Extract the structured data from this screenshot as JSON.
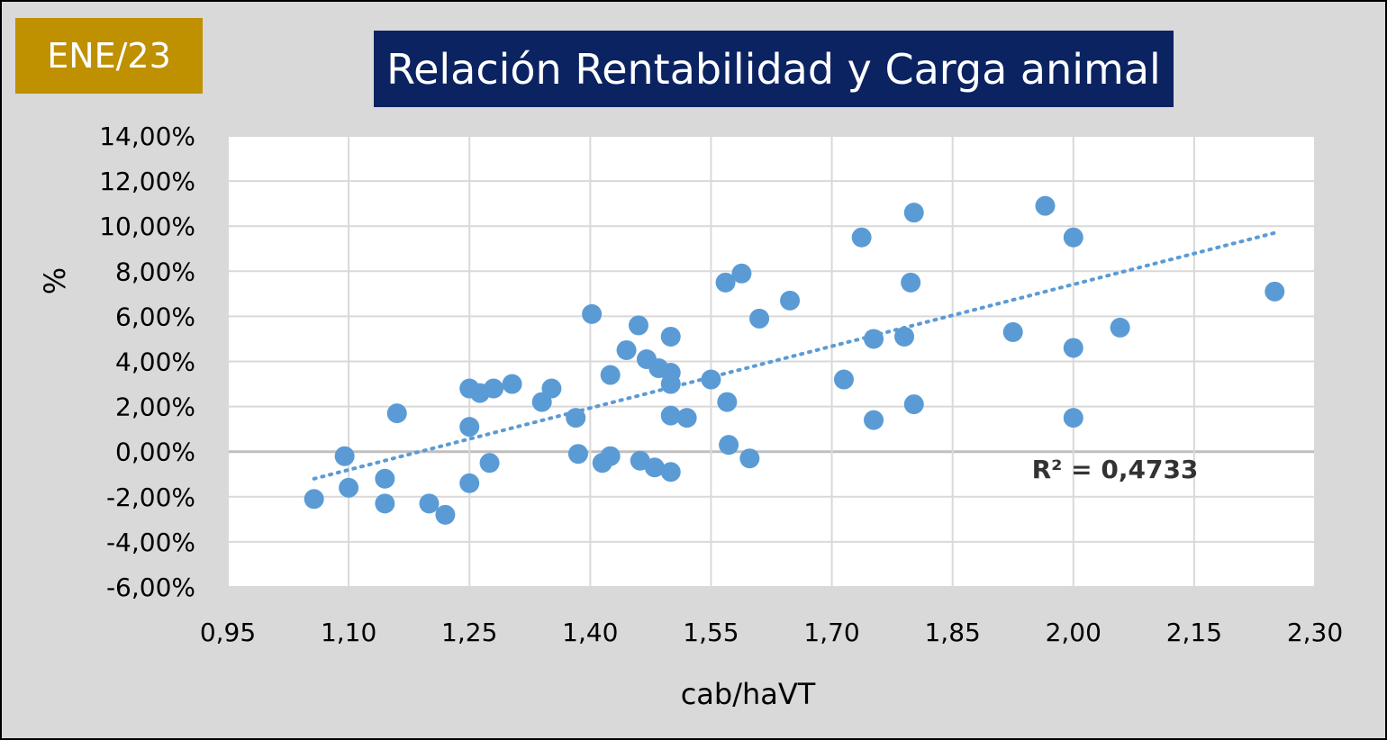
{
  "badge": {
    "label": "ENE/23"
  },
  "colors": {
    "background": "#d9d9d9",
    "plot_area": "#ffffff",
    "badge": "#bf9000",
    "title_box": "#0b2361",
    "points": "#5b9bd5",
    "trendline": "#5b9bd5",
    "gridline": "#d9d9d9"
  },
  "chart_data": {
    "type": "scatter",
    "title": "Relación Rentabilidad y Carga animal",
    "xlabel": "cab/haVT",
    "ylabel": "%",
    "xlim": [
      0.95,
      2.3
    ],
    "ylim": [
      -6,
      14
    ],
    "x_ticks": [
      0.95,
      1.1,
      1.25,
      1.4,
      1.55,
      1.7,
      1.85,
      2.0,
      2.15,
      2.3
    ],
    "y_ticks": [
      -6,
      -4,
      -2,
      0,
      2,
      4,
      6,
      8,
      10,
      12,
      14
    ],
    "x_tick_labels": [
      "0,95",
      "1,10",
      "1,25",
      "1,40",
      "1,55",
      "1,70",
      "1,85",
      "2,00",
      "2,15",
      "2,30"
    ],
    "y_tick_labels": [
      "-6,00%",
      "-4,00%",
      "-2,00%",
      "0,00%",
      "2,00%",
      "4,00%",
      "6,00%",
      "8,00%",
      "10,00%",
      "12,00%",
      "14,00%"
    ],
    "grid": true,
    "legend": "none",
    "points": [
      [
        1.057,
        -2.1
      ],
      [
        1.095,
        -0.2
      ],
      [
        1.1,
        -1.6
      ],
      [
        1.145,
        -1.2
      ],
      [
        1.145,
        -2.3
      ],
      [
        1.16,
        1.7
      ],
      [
        1.2,
        -2.3
      ],
      [
        1.22,
        -2.8
      ],
      [
        1.25,
        2.8
      ],
      [
        1.25,
        1.1
      ],
      [
        1.25,
        -1.4
      ],
      [
        1.263,
        2.6
      ],
      [
        1.275,
        -0.5
      ],
      [
        1.28,
        2.8
      ],
      [
        1.303,
        3.0
      ],
      [
        1.34,
        2.2
      ],
      [
        1.352,
        2.8
      ],
      [
        1.382,
        1.5
      ],
      [
        1.385,
        -0.1
      ],
      [
        1.402,
        6.1
      ],
      [
        1.415,
        -0.5
      ],
      [
        1.425,
        -0.2
      ],
      [
        1.425,
        3.4
      ],
      [
        1.445,
        4.5
      ],
      [
        1.46,
        5.6
      ],
      [
        1.462,
        -0.4
      ],
      [
        1.47,
        4.1
      ],
      [
        1.48,
        -0.7
      ],
      [
        1.485,
        3.7
      ],
      [
        1.5,
        5.1
      ],
      [
        1.5,
        3.5
      ],
      [
        1.5,
        3.0
      ],
      [
        1.5,
        1.6
      ],
      [
        1.5,
        -0.9
      ],
      [
        1.52,
        1.5
      ],
      [
        1.55,
        3.2
      ],
      [
        1.568,
        7.5
      ],
      [
        1.57,
        2.2
      ],
      [
        1.572,
        0.3
      ],
      [
        1.588,
        7.9
      ],
      [
        1.598,
        -0.3
      ],
      [
        1.61,
        5.9
      ],
      [
        1.648,
        6.7
      ],
      [
        1.715,
        3.2
      ],
      [
        1.737,
        9.5
      ],
      [
        1.752,
        5.0
      ],
      [
        1.752,
        1.4
      ],
      [
        1.79,
        5.1
      ],
      [
        1.798,
        7.5
      ],
      [
        1.802,
        10.6
      ],
      [
        1.802,
        2.1
      ],
      [
        1.925,
        5.3
      ],
      [
        1.965,
        10.9
      ],
      [
        2.0,
        9.5
      ],
      [
        2.0,
        4.6
      ],
      [
        2.0,
        1.5
      ],
      [
        2.058,
        5.5
      ],
      [
        2.25,
        7.1
      ]
    ],
    "trendline": {
      "type": "linear",
      "x": [
        1.057,
        2.25
      ],
      "y": [
        -1.2,
        9.7
      ],
      "style": "dotted"
    },
    "annotations": [
      {
        "text": "R² = 0,4733"
      }
    ]
  }
}
